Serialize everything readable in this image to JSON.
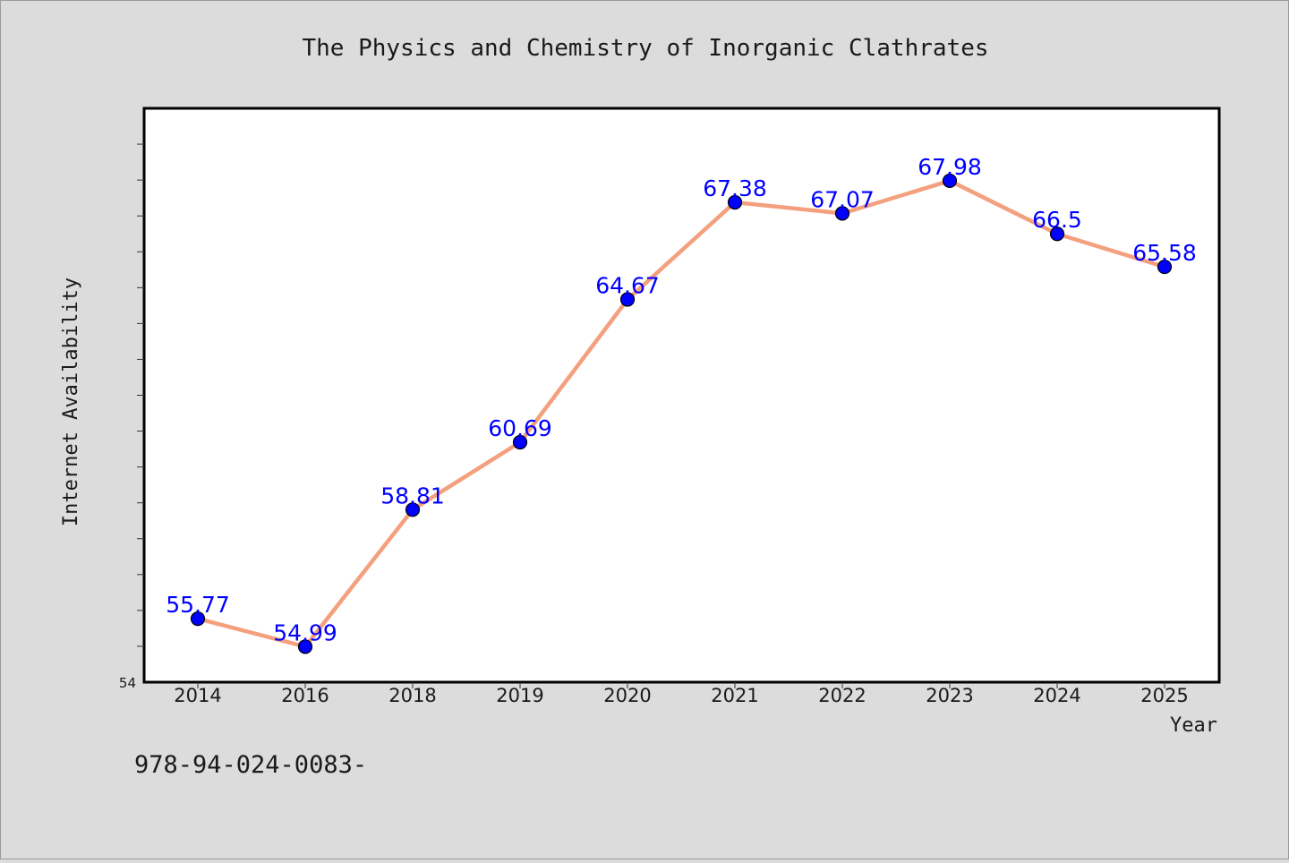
{
  "chart_data": {
    "type": "line",
    "title": "The Physics and Chemistry of Inorganic Clathrates",
    "xlabel": "Year",
    "ylabel": "Internet Availability",
    "categories": [
      "2014",
      "2016",
      "2018",
      "2019",
      "2020",
      "2021",
      "2022",
      "2023",
      "2024",
      "2025"
    ],
    "series": [
      {
        "values": [
          55.77,
          54.99,
          58.81,
          60.69,
          64.67,
          67.38,
          67.07,
          67.98,
          66.5,
          65.58
        ],
        "labels": [
          "55.77",
          "54.99",
          "58.81",
          "60.69",
          "64.67",
          "67.38",
          "67.07",
          "67.98",
          "66.5",
          "65.58"
        ]
      }
    ],
    "ylim": [
      54,
      70
    ],
    "y_min_label": "54",
    "grid": false,
    "legend": "none",
    "colors": {
      "line": "#f4a07e",
      "marker": "#0000ff",
      "marker_edge": "#000000",
      "data_label": "#0000ff",
      "background": "#dcdcdc",
      "plot_background": "#ffffff"
    },
    "marker_icon": "circle-marker"
  },
  "footnote": "978-94-024-0083-"
}
